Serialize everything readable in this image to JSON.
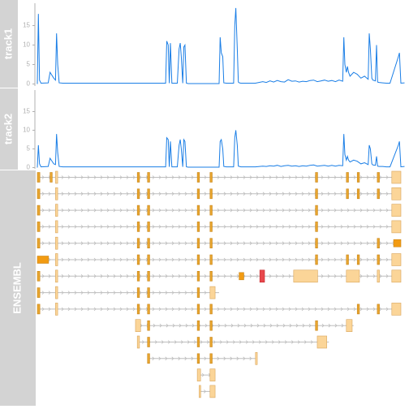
{
  "colors": {
    "title_bg": "#d3d3d3",
    "title_text": "#ffffff",
    "axis": "#b0b0b0",
    "coverage_line": "#1a7ee6",
    "intron_line": "#bdbdbd",
    "exon_coding_fill": "#e8a52e",
    "exon_coding_border": "#c9861a",
    "exon_utr_fill": "#fbd598",
    "exon_utr_border": "#d9a65c",
    "exon_orange_fill": "#f29b12",
    "exon_red_fill": "#e8474c",
    "exon_red_border": "#c4282e"
  },
  "chart_data": [
    {
      "type": "line",
      "title": "track1",
      "ylim": [
        0,
        19
      ],
      "yticks": [
        "0",
        "5",
        "10",
        "15"
      ],
      "xlim": [
        0,
        100
      ],
      "x": [
        0,
        0.3,
        0.6,
        1,
        3,
        3.5,
        4.5,
        5,
        5.3,
        5.6,
        6,
        7,
        35.3,
        35.6,
        36,
        36.3,
        36.6,
        37,
        38.5,
        39,
        39.3,
        39.6,
        40,
        40.3,
        40.6,
        41,
        41.5,
        50,
        50.3,
        50.6,
        51,
        51.3,
        52,
        54,
        54.3,
        54.6,
        55,
        55.3,
        55.6,
        56,
        60,
        62,
        63,
        64,
        65,
        66,
        67,
        68,
        69,
        70,
        71,
        72,
        73,
        74,
        75,
        76,
        77,
        78,
        79,
        80,
        81,
        82,
        83,
        84,
        84.3,
        84.6,
        85,
        85.3,
        85.6,
        86,
        87,
        88,
        89,
        90,
        91,
        91.3,
        91.6,
        92,
        92.3,
        93,
        93.3,
        93.6,
        94,
        95,
        96,
        97,
        99.3,
        99.6,
        100,
        101
      ],
      "y": [
        0,
        18,
        1,
        0.2,
        0.3,
        3,
        1.5,
        1,
        13,
        5,
        0.3,
        0.2,
        0.2,
        11,
        10,
        0.2,
        10.5,
        0.2,
        0.2,
        9,
        10.5,
        7,
        0.2,
        9.5,
        10,
        0.2,
        0.1,
        0.1,
        12,
        8,
        7,
        0.3,
        0.2,
        0.2,
        15,
        19.5,
        9,
        0.5,
        0.3,
        0.2,
        0.2,
        0.6,
        0.4,
        0.8,
        0.5,
        0.9,
        0.6,
        0.5,
        1.1,
        0.7,
        0.8,
        0.5,
        0.7,
        0.6,
        0.9,
        1.0,
        0.6,
        0.8,
        1.0,
        0.7,
        0.9,
        0.6,
        1.0,
        0.7,
        12,
        5,
        3,
        4.5,
        3,
        2,
        3,
        2.5,
        1.5,
        2,
        1.2,
        13,
        9,
        1.5,
        1,
        0.8,
        10,
        0.5,
        0.4,
        0.3,
        0.2,
        0.2,
        7,
        8,
        0.2,
        0.3
      ]
    },
    {
      "type": "line",
      "title": "track2",
      "ylim": [
        0,
        19
      ],
      "yticks": [
        "0",
        "5",
        "10",
        "15"
      ],
      "xlim": [
        0,
        100
      ],
      "x": [
        0,
        0.3,
        0.6,
        1,
        3,
        3.5,
        4.5,
        5,
        5.3,
        5.6,
        6,
        7,
        35.3,
        35.6,
        36,
        36.3,
        36.6,
        37,
        38.5,
        39,
        39.3,
        39.6,
        40,
        40.3,
        40.6,
        41,
        41.5,
        50,
        50.3,
        50.6,
        51,
        51.3,
        52,
        54,
        54.3,
        54.6,
        55,
        55.3,
        55.6,
        56,
        60,
        62,
        63,
        64,
        65,
        66,
        67,
        68,
        69,
        70,
        71,
        72,
        73,
        74,
        75,
        76,
        77,
        78,
        79,
        80,
        81,
        82,
        83,
        84,
        84.3,
        84.6,
        85,
        85.3,
        85.6,
        86,
        87,
        88,
        89,
        90,
        91,
        91.3,
        91.6,
        92,
        92.3,
        93,
        93.3,
        93.6,
        94,
        95,
        96,
        97,
        99.3,
        99.6,
        100,
        101
      ],
      "y": [
        0,
        6,
        1,
        0.2,
        0.3,
        2.5,
        1,
        0.8,
        9,
        4,
        0.3,
        0.2,
        0.2,
        8,
        7.5,
        0.2,
        7,
        0.2,
        0.2,
        6,
        7.5,
        5,
        0.2,
        7.5,
        7,
        0.2,
        0.1,
        0.1,
        7,
        7.5,
        5,
        0.3,
        0.2,
        0.2,
        8,
        10,
        6,
        0.4,
        0.3,
        0.2,
        0.2,
        0.4,
        0.3,
        0.5,
        0.4,
        0.6,
        0.3,
        0.5,
        0.6,
        0.4,
        0.5,
        0.3,
        0.5,
        0.4,
        0.6,
        0.7,
        0.4,
        0.5,
        0.6,
        0.4,
        0.6,
        0.4,
        0.6,
        0.5,
        9,
        3.5,
        2,
        3,
        2,
        1.5,
        2,
        1.7,
        1,
        1.3,
        0.8,
        6,
        5,
        1,
        0.7,
        0.6,
        3,
        0.4,
        0.3,
        0.3,
        0.2,
        0.2,
        6,
        7,
        0.2,
        0.3
      ]
    },
    {
      "type": "gene-model",
      "title": "ENSEMBL",
      "xlim": [
        0,
        100
      ],
      "transcripts": [
        {
          "start": 0,
          "end": 100,
          "exons": [
            {
              "s": 0,
              "e": 0.7,
              "k": "c"
            },
            {
              "s": 3.5,
              "e": 4.1,
              "k": "c"
            },
            {
              "s": 5,
              "e": 5.6,
              "k": "u"
            },
            {
              "s": 27.5,
              "e": 28.1,
              "k": "c"
            },
            {
              "s": 30.3,
              "e": 30.9,
              "k": "c"
            },
            {
              "s": 44,
              "e": 44.6,
              "k": "c"
            },
            {
              "s": 47.5,
              "e": 48.1,
              "k": "c"
            },
            {
              "s": 76.5,
              "e": 77.1,
              "k": "c"
            },
            {
              "s": 85,
              "e": 85.6,
              "k": "c"
            },
            {
              "s": 88,
              "e": 88.6,
              "k": "c"
            },
            {
              "s": 93.5,
              "e": 94.1,
              "k": "c"
            },
            {
              "s": 97.5,
              "e": 100,
              "k": "u"
            }
          ]
        },
        {
          "start": 0,
          "end": 100,
          "exons": [
            {
              "s": 0,
              "e": 0.7,
              "k": "c"
            },
            {
              "s": 5,
              "e": 5.6,
              "k": "u"
            },
            {
              "s": 27.5,
              "e": 28.1,
              "k": "c"
            },
            {
              "s": 30.3,
              "e": 30.9,
              "k": "c"
            },
            {
              "s": 44,
              "e": 44.6,
              "k": "c"
            },
            {
              "s": 47.5,
              "e": 48.1,
              "k": "c"
            },
            {
              "s": 76.5,
              "e": 77.1,
              "k": "c"
            },
            {
              "s": 85,
              "e": 85.6,
              "k": "c"
            },
            {
              "s": 88,
              "e": 88.6,
              "k": "c"
            },
            {
              "s": 93.5,
              "e": 94.1,
              "k": "c"
            },
            {
              "s": 97.5,
              "e": 100,
              "k": "u"
            }
          ]
        },
        {
          "start": 0,
          "end": 100,
          "exons": [
            {
              "s": 0,
              "e": 0.7,
              "k": "c"
            },
            {
              "s": 5,
              "e": 5.6,
              "k": "u"
            },
            {
              "s": 27.5,
              "e": 28.1,
              "k": "c"
            },
            {
              "s": 30.3,
              "e": 30.9,
              "k": "c"
            },
            {
              "s": 44,
              "e": 44.6,
              "k": "c"
            },
            {
              "s": 47.5,
              "e": 48.1,
              "k": "c"
            },
            {
              "s": 76.5,
              "e": 77.1,
              "k": "c"
            },
            {
              "s": 97.5,
              "e": 100,
              "k": "u"
            }
          ]
        },
        {
          "start": 0,
          "end": 100,
          "exons": [
            {
              "s": 0,
              "e": 0.7,
              "k": "c"
            },
            {
              "s": 5,
              "e": 5.6,
              "k": "u"
            },
            {
              "s": 27.5,
              "e": 28.1,
              "k": "c"
            },
            {
              "s": 30.3,
              "e": 30.9,
              "k": "c"
            },
            {
              "s": 44,
              "e": 44.6,
              "k": "c"
            },
            {
              "s": 47.5,
              "e": 48.1,
              "k": "c"
            },
            {
              "s": 76.5,
              "e": 77.1,
              "k": "c"
            },
            {
              "s": 97.5,
              "e": 100,
              "k": "u"
            }
          ]
        },
        {
          "start": 0,
          "end": 100,
          "exons": [
            {
              "s": 0,
              "e": 0.7,
              "k": "c"
            },
            {
              "s": 5,
              "e": 5.6,
              "k": "u"
            },
            {
              "s": 27.5,
              "e": 28.1,
              "k": "c"
            },
            {
              "s": 30.3,
              "e": 30.9,
              "k": "c"
            },
            {
              "s": 44,
              "e": 44.6,
              "k": "c"
            },
            {
              "s": 47.5,
              "e": 48.1,
              "k": "c"
            },
            {
              "s": 76.5,
              "e": 77.1,
              "k": "c"
            },
            {
              "s": 93.5,
              "e": 94.1,
              "k": "c"
            },
            {
              "s": 98,
              "e": 100,
              "k": "o"
            }
          ]
        },
        {
          "start": 0,
          "end": 100,
          "exons": [
            {
              "s": 0,
              "e": 3.1,
              "k": "o"
            },
            {
              "s": 5,
              "e": 5.6,
              "k": "u"
            },
            {
              "s": 27.5,
              "e": 28.1,
              "k": "c"
            },
            {
              "s": 30.3,
              "e": 30.9,
              "k": "c"
            },
            {
              "s": 44,
              "e": 44.6,
              "k": "c"
            },
            {
              "s": 47.5,
              "e": 48.1,
              "k": "c"
            },
            {
              "s": 76.5,
              "e": 77.1,
              "k": "c"
            },
            {
              "s": 85,
              "e": 85.6,
              "k": "c"
            },
            {
              "s": 88,
              "e": 88.6,
              "k": "c"
            },
            {
              "s": 93.5,
              "e": 94.1,
              "k": "c"
            },
            {
              "s": 97.5,
              "e": 100,
              "k": "u"
            }
          ]
        },
        {
          "start": 0,
          "end": 100,
          "exons": [
            {
              "s": 0,
              "e": 0.7,
              "k": "c"
            },
            {
              "s": 5,
              "e": 5.6,
              "k": "u"
            },
            {
              "s": 27.5,
              "e": 28.1,
              "k": "c"
            },
            {
              "s": 30.3,
              "e": 30.9,
              "k": "c"
            },
            {
              "s": 44,
              "e": 44.6,
              "k": "c"
            },
            {
              "s": 47.5,
              "e": 48.1,
              "k": "c"
            },
            {
              "s": 55.5,
              "e": 56.8,
              "k": "o"
            },
            {
              "s": 61.2,
              "e": 62.5,
              "k": "r"
            },
            {
              "s": 70.5,
              "e": 77.1,
              "k": "u"
            },
            {
              "s": 85,
              "e": 88.6,
              "k": "u"
            },
            {
              "s": 93.5,
              "e": 94.1,
              "k": "u"
            },
            {
              "s": 97.5,
              "e": 100,
              "k": "u"
            }
          ]
        },
        {
          "start": 0,
          "end": 50,
          "exons": [
            {
              "s": 0,
              "e": 0.7,
              "k": "c"
            },
            {
              "s": 5,
              "e": 5.6,
              "k": "u"
            },
            {
              "s": 27.5,
              "e": 28.1,
              "k": "c"
            },
            {
              "s": 30.3,
              "e": 30.9,
              "k": "c"
            },
            {
              "s": 44,
              "e": 44.6,
              "k": "c"
            },
            {
              "s": 47.5,
              "e": 48.9,
              "k": "u"
            }
          ]
        },
        {
          "start": 0,
          "end": 100,
          "exons": [
            {
              "s": 0,
              "e": 0.7,
              "k": "c"
            },
            {
              "s": 5,
              "e": 5.6,
              "k": "u"
            },
            {
              "s": 27.5,
              "e": 28.1,
              "k": "c"
            },
            {
              "s": 30.3,
              "e": 30.9,
              "k": "c"
            },
            {
              "s": 44,
              "e": 44.6,
              "k": "c"
            },
            {
              "s": 47.5,
              "e": 48.1,
              "k": "c"
            },
            {
              "s": 88,
              "e": 88.6,
              "k": "c"
            },
            {
              "s": 93.5,
              "e": 94.1,
              "k": "c"
            },
            {
              "s": 97.5,
              "e": 100,
              "k": "u"
            }
          ]
        },
        {
          "start": 27,
          "end": 87,
          "exons": [
            {
              "s": 27,
              "e": 28.4,
              "k": "u"
            },
            {
              "s": 30.3,
              "e": 30.9,
              "k": "c"
            },
            {
              "s": 44,
              "e": 44.6,
              "k": "c"
            },
            {
              "s": 47.5,
              "e": 48.1,
              "k": "c"
            },
            {
              "s": 76.5,
              "e": 77.1,
              "k": "c"
            },
            {
              "s": 85,
              "e": 86.6,
              "k": "u"
            }
          ]
        },
        {
          "start": 27.5,
          "end": 80.2,
          "exons": [
            {
              "s": 27.5,
              "e": 28.1,
              "k": "u"
            },
            {
              "s": 30.3,
              "e": 30.9,
              "k": "c"
            },
            {
              "s": 44,
              "e": 44.6,
              "k": "c"
            },
            {
              "s": 47.5,
              "e": 48.1,
              "k": "c"
            },
            {
              "s": 77,
              "e": 79.6,
              "k": "u"
            }
          ]
        },
        {
          "start": 30.3,
          "end": 60.5,
          "exons": [
            {
              "s": 30.3,
              "e": 30.9,
              "k": "c"
            },
            {
              "s": 44,
              "e": 44.6,
              "k": "c"
            },
            {
              "s": 47.5,
              "e": 48.1,
              "k": "c"
            },
            {
              "s": 60,
              "e": 60.5,
              "k": "u"
            }
          ]
        },
        {
          "start": 44,
          "end": 48.9,
          "exons": [
            {
              "s": 44,
              "e": 44.9,
              "k": "u"
            },
            {
              "s": 47.5,
              "e": 48.9,
              "k": "u"
            }
          ]
        },
        {
          "start": 44.5,
          "end": 48.9,
          "exons": [
            {
              "s": 44.5,
              "e": 44.9,
              "k": "u"
            },
            {
              "s": 47.5,
              "e": 48.9,
              "k": "u"
            }
          ]
        }
      ]
    }
  ]
}
